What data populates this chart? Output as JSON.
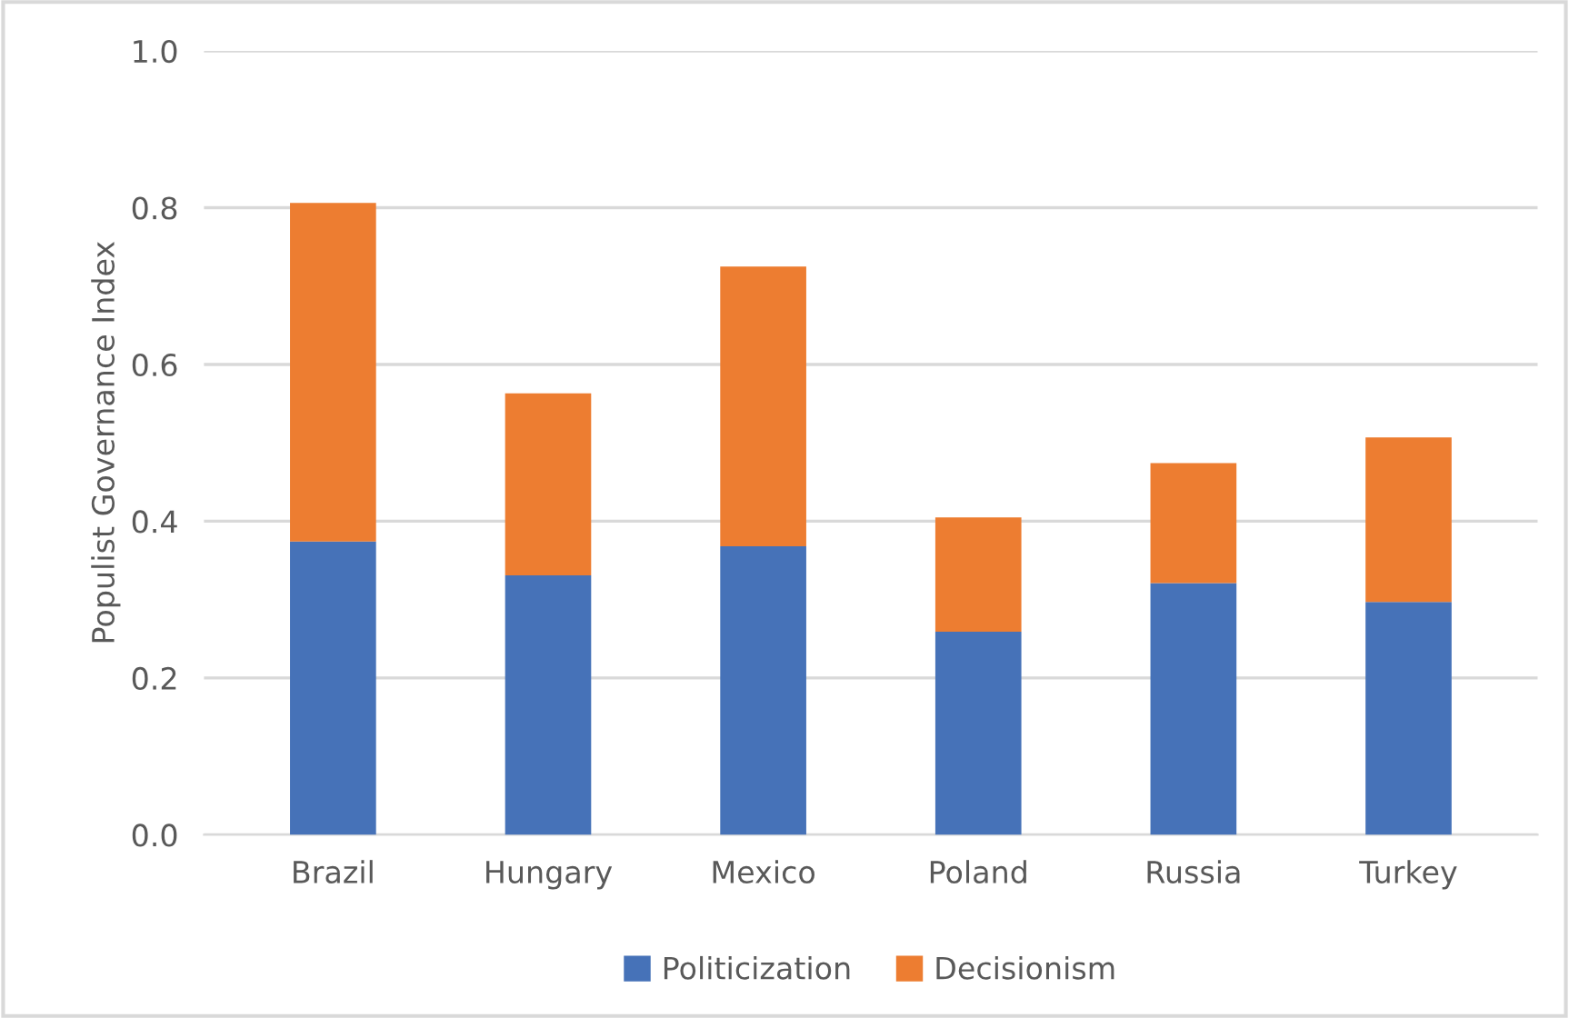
{
  "chart_data": {
    "type": "bar",
    "stacked": true,
    "ylabel": "Populist Governance Index",
    "categories": [
      "Brazil",
      "Hungary",
      "Mexico",
      "Poland",
      "Russia",
      "Turkey"
    ],
    "series": [
      {
        "name": "Politicization",
        "color": "#4672b8",
        "values": [
          0.374,
          0.331,
          0.368,
          0.259,
          0.321,
          0.297
        ]
      },
      {
        "name": "Decisionism",
        "color": "#ed7d31",
        "values": [
          0.432,
          0.232,
          0.357,
          0.146,
          0.153,
          0.21
        ]
      }
    ],
    "ylim": [
      0,
      1.0
    ],
    "yticks": [
      {
        "value": 0,
        "label": "0.0"
      },
      {
        "value": 0.2,
        "label": "0.2"
      },
      {
        "value": 0.4,
        "label": "0.4"
      },
      {
        "value": 0.6,
        "label": "0.6"
      },
      {
        "value": 0.8,
        "label": "0.8"
      },
      {
        "value": 1.0,
        "label": "1.0"
      }
    ],
    "grid": "y",
    "legend": "bottom"
  }
}
